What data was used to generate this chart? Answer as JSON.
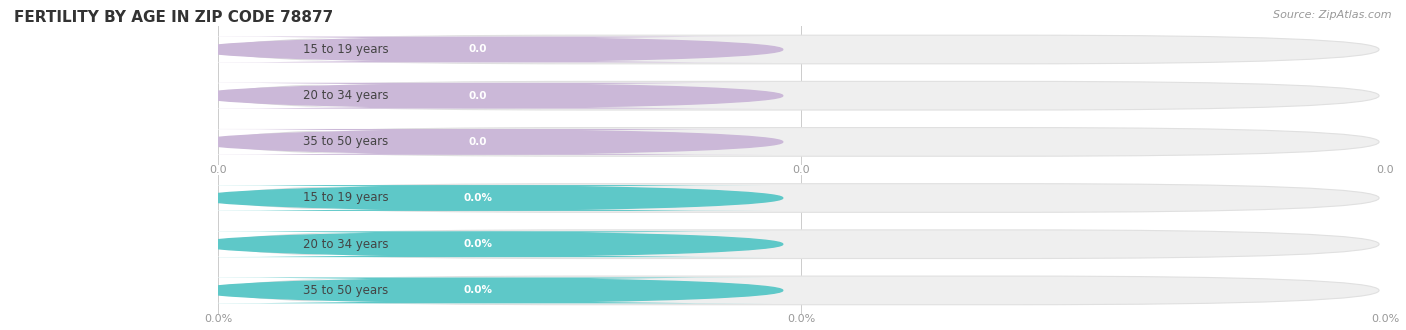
{
  "title": "FERTILITY BY AGE IN ZIP CODE 78877",
  "source": "Source: ZipAtlas.com",
  "top_section": {
    "categories": [
      "15 to 19 years",
      "20 to 34 years",
      "35 to 50 years"
    ],
    "values": [
      0.0,
      0.0,
      0.0
    ],
    "bar_color": "#cbb8d8",
    "value_format": "0.0"
  },
  "bottom_section": {
    "categories": [
      "15 to 19 years",
      "20 to 34 years",
      "35 to 50 years"
    ],
    "values": [
      0.0,
      0.0,
      0.0
    ],
    "bar_color": "#5ec8c8",
    "value_format": "0.0%"
  },
  "background_color": "#ffffff",
  "bar_bg_color": "#efefef",
  "bar_bg_edge_color": "#e0e0e0",
  "grid_color": "#cccccc",
  "tick_label_color": "#999999",
  "title_color": "#333333",
  "source_color": "#999999",
  "label_text_color": "#444444",
  "value_text_color": "#ffffff",
  "title_fontsize": 11,
  "label_fontsize": 8.5,
  "value_fontsize": 7.5,
  "tick_fontsize": 8
}
